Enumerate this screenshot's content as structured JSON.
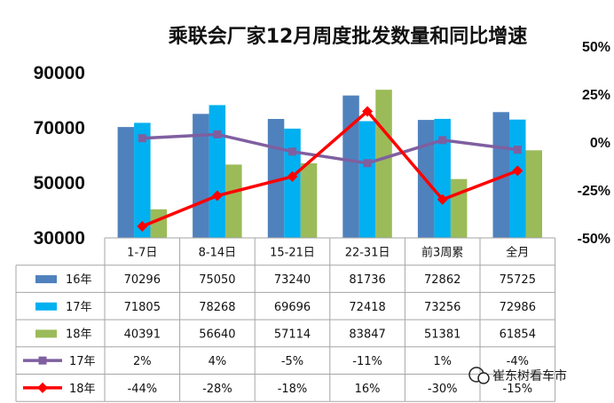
{
  "chart_data": {
    "type": "bar",
    "title": "乘联会厂家12月周度批发数量和同比增速",
    "categories": [
      "1-7日",
      "8-14日",
      "15-21日",
      "22-31日",
      "前3周累",
      "全月"
    ],
    "y_axis": {
      "ylim": [
        30000,
        90000
      ],
      "ticks": [
        "30000",
        "50000",
        "70000",
        "90000"
      ]
    },
    "y2_axis": {
      "ylim": [
        -50,
        50
      ],
      "ticks": [
        "-50%",
        "-25%",
        "0%",
        "25%",
        "50%"
      ]
    },
    "bar_series": [
      {
        "name": "16年",
        "color": "#4f81bd",
        "values": [
          70296,
          75050,
          73240,
          81736,
          72862,
          75725
        ],
        "labels": [
          "70296",
          "75050",
          "73240",
          "81736",
          "72862",
          "75725"
        ]
      },
      {
        "name": "17年",
        "color": "#00b0f0",
        "values": [
          71805,
          78268,
          69696,
          72418,
          73256,
          72986
        ],
        "labels": [
          "71805",
          "78268",
          "69696",
          "72418",
          "73256",
          "72986"
        ]
      },
      {
        "name": "18年",
        "color": "#9bbb59",
        "values": [
          40391,
          56640,
          57114,
          83847,
          51381,
          61854
        ],
        "labels": [
          "40391",
          "56640",
          "57114",
          "83847",
          "51381",
          "61854"
        ]
      }
    ],
    "line_series": [
      {
        "name": "17年",
        "color": "#7f5fa0",
        "marker": "square",
        "values": [
          2,
          4,
          -5,
          -11,
          1,
          -4
        ],
        "labels": [
          "2%",
          "4%",
          "-5%",
          "-11%",
          "1%",
          "-4%"
        ]
      },
      {
        "name": "18年",
        "color": "#ff0000",
        "marker": "diamond",
        "values": [
          -44,
          -28,
          -18,
          16,
          -30,
          -15
        ],
        "labels": [
          "-44%",
          "-28%",
          "-18%",
          "16%",
          "-30%",
          "-15%"
        ]
      }
    ],
    "legend": "data-table"
  },
  "watermark": "崔东树看车市"
}
